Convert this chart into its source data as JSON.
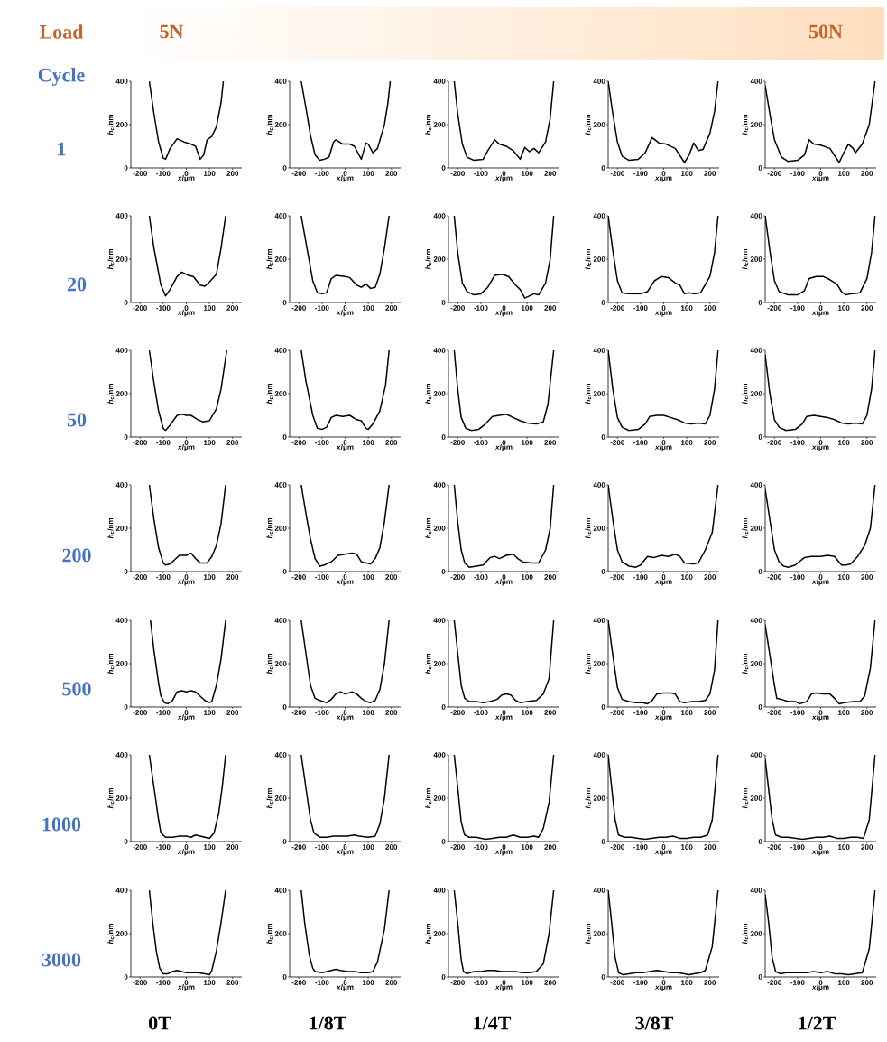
{
  "chart_data": [
    {
      "type": "line",
      "xlabel": "*x*/μm",
      "ylabel": "*h*$_{c}$/nm",
      "xlim": [
        -240,
        240
      ],
      "ylim": [
        0,
        400
      ],
      "xticks": [
        -200,
        -100,
        0,
        100,
        200
      ],
      "yticks": [
        0,
        200,
        400
      ],
      "series": [
        {
          "color": "#000000",
          "x": [
            -160,
            -140,
            -120,
            -100,
            -90,
            -70,
            -40,
            -10,
            20,
            40,
            60,
            75,
            90,
            110,
            130,
            150,
            160
          ],
          "values": [
            400,
            250,
            120,
            45,
            40,
            90,
            135,
            120,
            110,
            100,
            40,
            60,
            130,
            145,
            190,
            300,
            400
          ]
        }
      ]
    },
    {
      "type": "line",
      "xlabel": "*x*/μm",
      "ylabel": "*h*$_{c}$/nm",
      "xlim": [
        -240,
        240
      ],
      "ylim": [
        0,
        400
      ],
      "xticks": [
        -200,
        -100,
        0,
        100,
        200
      ],
      "yticks": [
        0,
        200,
        400
      ],
      "series": [
        {
          "color": "#000000",
          "x": [
            -190,
            -170,
            -150,
            -130,
            -110,
            -90,
            -70,
            -50,
            -40,
            -10,
            20,
            40,
            70,
            90,
            100,
            120,
            140,
            170,
            185,
            195
          ],
          "values": [
            400,
            280,
            150,
            60,
            35,
            40,
            50,
            120,
            130,
            110,
            110,
            100,
            40,
            115,
            110,
            70,
            90,
            200,
            300,
            400
          ]
        }
      ]
    },
    {
      "type": "line",
      "xlabel": "*x*/μm",
      "ylabel": "*h*$_{c}$/nm",
      "xlim": [
        -240,
        240
      ],
      "ylim": [
        0,
        400
      ],
      "xticks": [
        -200,
        -100,
        0,
        100,
        200
      ],
      "yticks": [
        0,
        200,
        400
      ],
      "series": [
        {
          "color": "#000000",
          "x": [
            -215,
            -200,
            -180,
            -160,
            -130,
            -90,
            -70,
            -40,
            -20,
            10,
            40,
            70,
            90,
            110,
            130,
            150,
            180,
            200,
            215
          ],
          "values": [
            400,
            250,
            110,
            50,
            35,
            40,
            80,
            130,
            110,
            100,
            80,
            40,
            95,
            75,
            90,
            70,
            120,
            230,
            400
          ]
        }
      ]
    },
    {
      "type": "line",
      "xlabel": "*x*/μm",
      "ylabel": "*h*$_{c}$/nm",
      "xlim": [
        -240,
        240
      ],
      "ylim": [
        0,
        400
      ],
      "xticks": [
        -200,
        -100,
        0,
        100,
        200
      ],
      "yticks": [
        0,
        200,
        400
      ],
      "series": [
        {
          "color": "#000000",
          "x": [
            -240,
            -220,
            -200,
            -180,
            -150,
            -110,
            -80,
            -50,
            -20,
            10,
            50,
            90,
            110,
            130,
            150,
            170,
            200,
            220,
            235
          ],
          "values": [
            400,
            250,
            120,
            55,
            35,
            40,
            70,
            140,
            115,
            110,
            90,
            25,
            60,
            115,
            80,
            85,
            160,
            260,
            400
          ]
        }
      ]
    },
    {
      "type": "line",
      "xlabel": "*x*/μm",
      "ylabel": "*h*$_{c}$/nm",
      "xlim": [
        -240,
        240
      ],
      "ylim": [
        0,
        400
      ],
      "xticks": [
        -200,
        -100,
        0,
        100,
        200
      ],
      "yticks": [
        0,
        200,
        400
      ],
      "series": [
        {
          "color": "#000000",
          "x": [
            -240,
            -220,
            -200,
            -170,
            -140,
            -100,
            -70,
            -50,
            -30,
            0,
            40,
            80,
            100,
            120,
            140,
            150,
            180,
            210,
            235
          ],
          "values": [
            380,
            250,
            130,
            50,
            30,
            35,
            60,
            130,
            110,
            105,
            90,
            25,
            70,
            110,
            90,
            70,
            110,
            200,
            400
          ]
        }
      ]
    },
    {
      "type": "line",
      "xlabel": "*x*/μm",
      "ylabel": "*h*$_{c}$/nm",
      "xlim": [
        -240,
        240
      ],
      "ylim": [
        0,
        400
      ],
      "xticks": [
        -200,
        -100,
        0,
        100,
        200
      ],
      "yticks": [
        0,
        200,
        400
      ],
      "series": [
        {
          "color": "#000000",
          "x": [
            -160,
            -140,
            -110,
            -90,
            -70,
            -40,
            -20,
            10,
            30,
            60,
            80,
            100,
            130,
            150,
            170
          ],
          "values": [
            400,
            250,
            80,
            30,
            60,
            120,
            140,
            125,
            120,
            80,
            75,
            95,
            130,
            250,
            400
          ]
        }
      ]
    },
    {
      "type": "line",
      "xlabel": "*x*/μm",
      "ylabel": "*h*$_{c}$/nm",
      "xlim": [
        -240,
        240
      ],
      "ylim": [
        0,
        400
      ],
      "xticks": [
        -200,
        -100,
        0,
        100,
        200
      ],
      "yticks": [
        0,
        200,
        400
      ],
      "series": [
        {
          "color": "#000000",
          "x": [
            -190,
            -170,
            -140,
            -120,
            -100,
            -80,
            -60,
            -40,
            0,
            20,
            50,
            70,
            90,
            110,
            130,
            150,
            170,
            190
          ],
          "values": [
            400,
            280,
            100,
            45,
            40,
            45,
            110,
            125,
            120,
            115,
            80,
            70,
            85,
            65,
            70,
            130,
            250,
            400
          ]
        }
      ]
    },
    {
      "type": "line",
      "xlabel": "*x*/μm",
      "ylabel": "*h*$_{c}$/nm",
      "xlim": [
        -240,
        240
      ],
      "ylim": [
        0,
        400
      ],
      "xticks": [
        -200,
        -100,
        0,
        100,
        200
      ],
      "yticks": [
        0,
        200,
        400
      ],
      "series": [
        {
          "color": "#000000",
          "x": [
            -215,
            -200,
            -180,
            -160,
            -130,
            -100,
            -70,
            -40,
            -10,
            20,
            50,
            70,
            90,
            110,
            130,
            150,
            180,
            200,
            215
          ],
          "values": [
            400,
            230,
            90,
            50,
            35,
            40,
            70,
            125,
            130,
            120,
            80,
            60,
            20,
            30,
            40,
            35,
            90,
            200,
            400
          ]
        }
      ]
    },
    {
      "type": "line",
      "xlabel": "*x*/μm",
      "ylabel": "*h*$_{c}$/nm",
      "xlim": [
        -240,
        240
      ],
      "ylim": [
        0,
        400
      ],
      "xticks": [
        -200,
        -100,
        0,
        100,
        200
      ],
      "yticks": [
        0,
        200,
        400
      ],
      "series": [
        {
          "color": "#000000",
          "x": [
            -240,
            -220,
            -200,
            -180,
            -150,
            -100,
            -70,
            -40,
            -10,
            20,
            50,
            70,
            90,
            110,
            130,
            160,
            200,
            220,
            235
          ],
          "values": [
            400,
            240,
            100,
            45,
            40,
            40,
            50,
            100,
            120,
            115,
            90,
            80,
            40,
            45,
            40,
            45,
            120,
            230,
            400
          ]
        }
      ]
    },
    {
      "type": "line",
      "xlabel": "*x*/μm",
      "ylabel": "*h*$_{c}$/nm",
      "xlim": [
        -240,
        240
      ],
      "ylim": [
        0,
        400
      ],
      "xticks": [
        -200,
        -100,
        0,
        100,
        200
      ],
      "yticks": [
        0,
        200,
        400
      ],
      "series": [
        {
          "color": "#000000",
          "x": [
            -240,
            -220,
            -200,
            -180,
            -140,
            -100,
            -70,
            -50,
            -20,
            10,
            40,
            70,
            90,
            110,
            130,
            170,
            200,
            220,
            235
          ],
          "values": [
            400,
            240,
            100,
            50,
            35,
            35,
            55,
            110,
            120,
            120,
            105,
            85,
            50,
            35,
            40,
            45,
            110,
            230,
            400
          ]
        }
      ]
    },
    {
      "type": "line",
      "xlabel": "*x*/μm",
      "ylabel": "*h*$_{c}$/nm",
      "xlim": [
        -240,
        240
      ],
      "ylim": [
        0,
        400
      ],
      "xticks": [
        -200,
        -100,
        0,
        100,
        200
      ],
      "yticks": [
        0,
        200,
        400
      ],
      "series": [
        {
          "color": "#000000",
          "x": [
            -160,
            -140,
            -120,
            -100,
            -90,
            -70,
            -40,
            -20,
            0,
            20,
            50,
            70,
            100,
            130,
            150,
            175
          ],
          "values": [
            400,
            250,
            120,
            40,
            30,
            55,
            100,
            105,
            100,
            100,
            80,
            70,
            75,
            130,
            220,
            400
          ]
        }
      ]
    },
    {
      "type": "line",
      "xlabel": "*x*/μm",
      "ylabel": "*h*$_{c}$/nm",
      "xlim": [
        -240,
        240
      ],
      "ylim": [
        0,
        400
      ],
      "xticks": [
        -200,
        -100,
        0,
        100,
        200
      ],
      "yticks": [
        0,
        200,
        400
      ],
      "series": [
        {
          "color": "#000000",
          "x": [
            -190,
            -170,
            -140,
            -120,
            -100,
            -80,
            -60,
            -40,
            -10,
            20,
            50,
            70,
            90,
            100,
            120,
            150,
            175,
            190
          ],
          "values": [
            400,
            260,
            100,
            40,
            35,
            45,
            90,
            100,
            95,
            100,
            80,
            75,
            40,
            35,
            60,
            120,
            240,
            400
          ]
        }
      ]
    },
    {
      "type": "line",
      "xlabel": "*x*/μm",
      "ylabel": "*h*$_{c}$/nm",
      "xlim": [
        -240,
        240
      ],
      "ylim": [
        0,
        400
      ],
      "xticks": [
        -200,
        -100,
        0,
        100,
        200
      ],
      "yticks": [
        0,
        200,
        400
      ],
      "series": [
        {
          "color": "#000000",
          "x": [
            -215,
            -200,
            -185,
            -165,
            -140,
            -110,
            -80,
            -50,
            -20,
            10,
            40,
            70,
            100,
            140,
            170,
            190,
            215
          ],
          "values": [
            400,
            220,
            90,
            40,
            30,
            35,
            60,
            95,
            100,
            105,
            90,
            75,
            65,
            60,
            70,
            150,
            400
          ]
        }
      ]
    },
    {
      "type": "line",
      "xlabel": "*x*/μm",
      "ylabel": "*h*$_{c}$/nm",
      "xlim": [
        -240,
        240
      ],
      "ylim": [
        0,
        400
      ],
      "xticks": [
        -200,
        -100,
        0,
        100,
        200
      ],
      "yticks": [
        0,
        200,
        400
      ],
      "series": [
        {
          "color": "#000000",
          "x": [
            -240,
            -220,
            -200,
            -180,
            -150,
            -110,
            -80,
            -60,
            -30,
            0,
            30,
            60,
            90,
            120,
            150,
            180,
            200,
            220,
            235
          ],
          "values": [
            400,
            220,
            90,
            45,
            30,
            35,
            60,
            95,
            100,
            100,
            90,
            80,
            65,
            60,
            65,
            60,
            100,
            220,
            400
          ]
        }
      ]
    },
    {
      "type": "line",
      "xlabel": "*x*/μm",
      "ylabel": "*h*$_{c}$/nm",
      "xlim": [
        -240,
        240
      ],
      "ylim": [
        0,
        400
      ],
      "xticks": [
        -200,
        -100,
        0,
        100,
        200
      ],
      "yticks": [
        0,
        200,
        400
      ],
      "series": [
        {
          "color": "#000000",
          "x": [
            -240,
            -220,
            -200,
            -180,
            -150,
            -110,
            -80,
            -60,
            -30,
            0,
            30,
            60,
            90,
            120,
            150,
            180,
            200,
            220,
            235
          ],
          "values": [
            380,
            200,
            80,
            45,
            30,
            35,
            60,
            95,
            100,
            95,
            90,
            80,
            65,
            60,
            65,
            60,
            100,
            220,
            400
          ]
        }
      ]
    },
    {
      "type": "line",
      "xlabel": "*x*/μm",
      "ylabel": "*h*$_{c}$/nm",
      "xlim": [
        -240,
        240
      ],
      "ylim": [
        0,
        400
      ],
      "xticks": [
        -200,
        -100,
        0,
        100,
        200
      ],
      "yticks": [
        0,
        200,
        400
      ],
      "series": [
        {
          "color": "#000000",
          "x": [
            -160,
            -140,
            -120,
            -100,
            -90,
            -70,
            -50,
            -30,
            0,
            20,
            40,
            60,
            90,
            110,
            130,
            150,
            170
          ],
          "values": [
            400,
            240,
            110,
            40,
            30,
            35,
            55,
            75,
            75,
            85,
            60,
            40,
            40,
            70,
            120,
            220,
            400
          ]
        }
      ]
    },
    {
      "type": "line",
      "xlabel": "*x*/μm",
      "ylabel": "*h*$_{c}$/nm",
      "xlim": [
        -240,
        240
      ],
      "ylim": [
        0,
        400
      ],
      "xticks": [
        -200,
        -100,
        0,
        100,
        200
      ],
      "yticks": [
        0,
        200,
        400
      ],
      "series": [
        {
          "color": "#000000",
          "x": [
            -190,
            -170,
            -150,
            -130,
            -110,
            -90,
            -60,
            -30,
            0,
            30,
            50,
            70,
            90,
            110,
            130,
            150,
            170,
            190
          ],
          "values": [
            400,
            270,
            150,
            60,
            25,
            30,
            45,
            75,
            80,
            85,
            80,
            45,
            40,
            35,
            60,
            110,
            230,
            400
          ]
        }
      ]
    },
    {
      "type": "line",
      "xlabel": "*x*/μm",
      "ylabel": "*h*$_{c}$/nm",
      "xlim": [
        -240,
        240
      ],
      "ylim": [
        0,
        400
      ],
      "xticks": [
        -200,
        -100,
        0,
        100,
        200
      ],
      "yticks": [
        0,
        200,
        400
      ],
      "series": [
        {
          "color": "#000000",
          "x": [
            -215,
            -200,
            -185,
            -170,
            -150,
            -120,
            -90,
            -60,
            -40,
            -20,
            10,
            40,
            60,
            80,
            120,
            150,
            180,
            200,
            215
          ],
          "values": [
            400,
            230,
            100,
            40,
            20,
            25,
            30,
            65,
            70,
            60,
            75,
            80,
            60,
            45,
            40,
            40,
            100,
            200,
            400
          ]
        }
      ]
    },
    {
      "type": "line",
      "xlabel": "*x*/μm",
      "ylabel": "*h*$_{c}$/nm",
      "xlim": [
        -240,
        240
      ],
      "ylim": [
        0,
        400
      ],
      "xticks": [
        -200,
        -100,
        0,
        100,
        200
      ],
      "yticks": [
        0,
        200,
        400
      ],
      "series": [
        {
          "color": "#000000",
          "x": [
            -240,
            -220,
            -200,
            -180,
            -150,
            -120,
            -100,
            -70,
            -40,
            -10,
            20,
            50,
            70,
            90,
            130,
            150,
            180,
            210,
            235
          ],
          "values": [
            400,
            240,
            100,
            45,
            25,
            20,
            30,
            70,
            65,
            75,
            70,
            80,
            70,
            40,
            35,
            40,
            100,
            180,
            400
          ]
        }
      ]
    },
    {
      "type": "line",
      "xlabel": "*x*/μm",
      "ylabel": "*h*$_{c}$/nm",
      "xlim": [
        -240,
        240
      ],
      "ylim": [
        0,
        400
      ],
      "xticks": [
        -200,
        -100,
        0,
        100,
        200
      ],
      "yticks": [
        0,
        200,
        400
      ],
      "series": [
        {
          "color": "#000000",
          "x": [
            -240,
            -220,
            -200,
            -180,
            -160,
            -140,
            -110,
            -70,
            -40,
            0,
            30,
            60,
            90,
            110,
            130,
            160,
            190,
            215,
            235
          ],
          "values": [
            380,
            240,
            100,
            45,
            25,
            20,
            30,
            65,
            70,
            70,
            75,
            70,
            30,
            30,
            35,
            70,
            120,
            200,
            400
          ]
        }
      ]
    },
    {
      "type": "line",
      "xlabel": "*x*/μm",
      "ylabel": "*h*$_{c}$/nm",
      "xlim": [
        -240,
        240
      ],
      "ylim": [
        0,
        400
      ],
      "xticks": [
        -200,
        -100,
        0,
        100,
        200
      ],
      "yticks": [
        0,
        200,
        400
      ],
      "series": [
        {
          "color": "#000000",
          "x": [
            -155,
            -140,
            -120,
            -110,
            -95,
            -80,
            -60,
            -40,
            -20,
            0,
            20,
            40,
            60,
            80,
            100,
            110,
            130,
            150,
            170
          ],
          "values": [
            400,
            260,
            110,
            50,
            20,
            15,
            30,
            70,
            75,
            70,
            75,
            70,
            50,
            30,
            20,
            25,
            100,
            220,
            400
          ]
        }
      ]
    },
    {
      "type": "line",
      "xlabel": "*x*/μm",
      "ylabel": "*h*$_{c}$/nm",
      "xlim": [
        -240,
        240
      ],
      "ylim": [
        0,
        400
      ],
      "xticks": [
        -200,
        -100,
        0,
        100,
        200
      ],
      "yticks": [
        0,
        200,
        400
      ],
      "series": [
        {
          "color": "#000000",
          "x": [
            -190,
            -170,
            -150,
            -130,
            -110,
            -80,
            -60,
            -40,
            -20,
            0,
            30,
            50,
            70,
            90,
            110,
            130,
            150,
            170,
            190
          ],
          "values": [
            400,
            250,
            100,
            40,
            30,
            20,
            35,
            60,
            70,
            60,
            70,
            60,
            40,
            25,
            20,
            30,
            80,
            200,
            400
          ]
        }
      ]
    },
    {
      "type": "line",
      "xlabel": "*x*/μm",
      "ylabel": "*h*$_{c}$/nm",
      "xlim": [
        -240,
        240
      ],
      "ylim": [
        0,
        400
      ],
      "xticks": [
        -200,
        -100,
        0,
        100,
        200
      ],
      "yticks": [
        0,
        200,
        400
      ],
      "series": [
        {
          "color": "#000000",
          "x": [
            -215,
            -200,
            -185,
            -170,
            -150,
            -120,
            -90,
            -60,
            -30,
            -10,
            10,
            30,
            50,
            70,
            100,
            140,
            170,
            195,
            215
          ],
          "values": [
            400,
            250,
            100,
            40,
            25,
            25,
            20,
            25,
            35,
            55,
            60,
            55,
            30,
            20,
            25,
            30,
            60,
            130,
            400
          ]
        }
      ]
    },
    {
      "type": "line",
      "xlabel": "*x*/μm",
      "ylabel": "*h*$_{c}$/nm",
      "xlim": [
        -240,
        240
      ],
      "ylim": [
        0,
        400
      ],
      "xticks": [
        -200,
        -100,
        0,
        100,
        200
      ],
      "yticks": [
        0,
        200,
        400
      ],
      "series": [
        {
          "color": "#000000",
          "x": [
            -240,
            -220,
            -200,
            -180,
            -150,
            -120,
            -90,
            -70,
            -50,
            -30,
            0,
            30,
            50,
            70,
            90,
            120,
            150,
            180,
            200,
            220,
            235
          ],
          "values": [
            400,
            240,
            90,
            35,
            25,
            20,
            20,
            15,
            30,
            60,
            65,
            65,
            60,
            25,
            20,
            25,
            25,
            30,
            60,
            170,
            400
          ]
        }
      ]
    },
    {
      "type": "line",
      "xlabel": "*x*/μm",
      "ylabel": "*h*$_{c}$/nm",
      "xlim": [
        -240,
        240
      ],
      "ylim": [
        0,
        400
      ],
      "xticks": [
        -200,
        -100,
        0,
        100,
        200
      ],
      "yticks": [
        0,
        200,
        400
      ],
      "series": [
        {
          "color": "#000000",
          "x": [
            -240,
            -220,
            -200,
            -190,
            -170,
            -140,
            -110,
            -90,
            -60,
            -40,
            -20,
            10,
            40,
            60,
            80,
            100,
            140,
            170,
            190,
            215,
            235
          ],
          "values": [
            380,
            240,
            100,
            40,
            35,
            25,
            25,
            15,
            25,
            60,
            65,
            60,
            60,
            40,
            15,
            20,
            25,
            25,
            50,
            180,
            400
          ]
        }
      ]
    },
    {
      "type": "line",
      "xlabel": "*x*/μm",
      "ylabel": "*h*$_{c}$/nm",
      "xlim": [
        -240,
        240
      ],
      "ylim": [
        0,
        400
      ],
      "xticks": [
        -200,
        -100,
        0,
        100,
        200
      ],
      "yticks": [
        0,
        200,
        400
      ],
      "series": [
        {
          "color": "#000000",
          "x": [
            -160,
            -140,
            -120,
            -110,
            -90,
            -60,
            -30,
            0,
            20,
            40,
            60,
            80,
            100,
            120,
            140,
            155,
            170
          ],
          "values": [
            400,
            250,
            100,
            40,
            20,
            20,
            25,
            25,
            20,
            30,
            25,
            20,
            15,
            40,
            130,
            250,
            400
          ]
        }
      ]
    },
    {
      "type": "line",
      "xlabel": "*x*/μm",
      "ylabel": "*h*$_{c}$/nm",
      "xlim": [
        -240,
        240
      ],
      "ylim": [
        0,
        400
      ],
      "xticks": [
        -200,
        -100,
        0,
        100,
        200
      ],
      "yticks": [
        0,
        200,
        400
      ],
      "series": [
        {
          "color": "#000000",
          "x": [
            -190,
            -170,
            -150,
            -135,
            -110,
            -80,
            -50,
            -20,
            10,
            40,
            60,
            100,
            130,
            150,
            170,
            190
          ],
          "values": [
            400,
            250,
            100,
            40,
            20,
            20,
            25,
            25,
            25,
            30,
            25,
            20,
            25,
            80,
            200,
            400
          ]
        }
      ]
    },
    {
      "type": "line",
      "xlabel": "*x*/μm",
      "ylabel": "*h*$_{c}$/nm",
      "xlim": [
        -240,
        240
      ],
      "ylim": [
        0,
        400
      ],
      "xticks": [
        -200,
        -100,
        0,
        100,
        200
      ],
      "yticks": [
        0,
        200,
        400
      ],
      "series": [
        {
          "color": "#000000",
          "x": [
            -215,
            -200,
            -185,
            -170,
            -150,
            -120,
            -100,
            -80,
            -50,
            -20,
            10,
            40,
            70,
            100,
            130,
            150,
            170,
            195,
            215
          ],
          "values": [
            400,
            250,
            90,
            30,
            20,
            20,
            15,
            10,
            15,
            20,
            20,
            30,
            20,
            20,
            25,
            20,
            60,
            180,
            400
          ]
        }
      ]
    },
    {
      "type": "line",
      "xlabel": "*x*/μm",
      "ylabel": "*h*$_{c}$/nm",
      "xlim": [
        -240,
        240
      ],
      "ylim": [
        0,
        400
      ],
      "xticks": [
        -200,
        -100,
        0,
        100,
        200
      ],
      "yticks": [
        0,
        200,
        400
      ],
      "series": [
        {
          "color": "#000000",
          "x": [
            -240,
            -225,
            -210,
            -195,
            -170,
            -140,
            -110,
            -80,
            -50,
            -20,
            10,
            40,
            70,
            100,
            130,
            160,
            190,
            210,
            235
          ],
          "values": [
            400,
            250,
            100,
            30,
            20,
            20,
            15,
            10,
            15,
            20,
            20,
            25,
            15,
            15,
            20,
            20,
            30,
            100,
            400
          ]
        }
      ]
    },
    {
      "type": "line",
      "xlabel": "*x*/μm",
      "ylabel": "*h*$_{c}$/nm",
      "xlim": [
        -240,
        240
      ],
      "ylim": [
        0,
        400
      ],
      "xticks": [
        -200,
        -100,
        0,
        100,
        200
      ],
      "yticks": [
        0,
        200,
        400
      ],
      "series": [
        {
          "color": "#000000",
          "x": [
            -240,
            -225,
            -210,
            -195,
            -170,
            -140,
            -110,
            -80,
            -50,
            -20,
            10,
            40,
            70,
            100,
            130,
            160,
            185,
            210,
            235
          ],
          "values": [
            380,
            240,
            100,
            30,
            20,
            20,
            15,
            10,
            15,
            20,
            20,
            25,
            15,
            15,
            20,
            20,
            15,
            100,
            400
          ]
        }
      ]
    },
    {
      "type": "line",
      "xlabel": "*x*/μm",
      "ylabel": "*h*$_{c}$/nm",
      "xlim": [
        -240,
        240
      ],
      "ylim": [
        0,
        400
      ],
      "xticks": [
        -200,
        -100,
        0,
        100,
        200
      ],
      "yticks": [
        0,
        200,
        400
      ],
      "series": [
        {
          "color": "#000000",
          "x": [
            -160,
            -145,
            -130,
            -115,
            -100,
            -80,
            -60,
            -40,
            -20,
            0,
            20,
            50,
            80,
            100,
            110,
            130,
            150,
            170
          ],
          "values": [
            400,
            250,
            120,
            40,
            15,
            15,
            25,
            30,
            25,
            20,
            20,
            20,
            15,
            10,
            30,
            120,
            250,
            400
          ]
        }
      ]
    },
    {
      "type": "line",
      "xlabel": "*x*/μm",
      "ylabel": "*h*$_{c}$/nm",
      "xlim": [
        -240,
        240
      ],
      "ylim": [
        0,
        400
      ],
      "xticks": [
        -200,
        -100,
        0,
        100,
        200
      ],
      "yticks": [
        0,
        200,
        400
      ],
      "series": [
        {
          "color": "#000000",
          "x": [
            -190,
            -175,
            -155,
            -140,
            -130,
            -100,
            -80,
            -60,
            -40,
            -20,
            10,
            40,
            70,
            100,
            120,
            140,
            170,
            190
          ],
          "values": [
            400,
            250,
            100,
            40,
            25,
            20,
            25,
            30,
            35,
            30,
            25,
            25,
            20,
            20,
            25,
            70,
            220,
            400
          ]
        }
      ]
    },
    {
      "type": "line",
      "xlabel": "*x*/μm",
      "ylabel": "*h*$_{c}$/nm",
      "xlim": [
        -240,
        240
      ],
      "ylim": [
        0,
        400
      ],
      "xticks": [
        -200,
        -100,
        0,
        100,
        200
      ],
      "yticks": [
        0,
        200,
        400
      ],
      "series": [
        {
          "color": "#000000",
          "x": [
            -215,
            -200,
            -185,
            -175,
            -160,
            -130,
            -100,
            -70,
            -40,
            -10,
            20,
            50,
            80,
            110,
            140,
            170,
            195,
            215
          ],
          "values": [
            400,
            250,
            80,
            25,
            15,
            25,
            25,
            30,
            30,
            25,
            25,
            25,
            20,
            20,
            25,
            60,
            200,
            400
          ]
        }
      ]
    },
    {
      "type": "line",
      "xlabel": "*x*/μm",
      "ylabel": "*h*$_{c}$/nm",
      "xlim": [
        -240,
        240
      ],
      "ylim": [
        0,
        400
      ],
      "xticks": [
        -200,
        -100,
        0,
        100,
        200
      ],
      "yticks": [
        0,
        200,
        400
      ],
      "series": [
        {
          "color": "#000000",
          "x": [
            -240,
            -225,
            -210,
            -195,
            -175,
            -150,
            -120,
            -90,
            -60,
            -30,
            0,
            30,
            60,
            90,
            110,
            130,
            160,
            180,
            210,
            235
          ],
          "values": [
            400,
            250,
            90,
            20,
            10,
            15,
            20,
            20,
            25,
            30,
            25,
            20,
            20,
            15,
            10,
            15,
            20,
            30,
            140,
            400
          ]
        }
      ]
    },
    {
      "type": "line",
      "xlabel": "*x*/μm",
      "ylabel": "*h*$_{c}$/nm",
      "xlim": [
        -240,
        240
      ],
      "ylim": [
        0,
        400
      ],
      "xticks": [
        -200,
        -100,
        0,
        100,
        200
      ],
      "yticks": [
        0,
        200,
        400
      ],
      "series": [
        {
          "color": "#000000",
          "x": [
            -240,
            -225,
            -210,
            -195,
            -175,
            -150,
            -120,
            -90,
            -60,
            -30,
            0,
            30,
            60,
            90,
            120,
            150,
            180,
            210,
            235
          ],
          "values": [
            380,
            250,
            90,
            25,
            15,
            20,
            20,
            20,
            20,
            25,
            20,
            25,
            15,
            15,
            10,
            15,
            20,
            130,
            400
          ]
        }
      ]
    },
    {
      "type": "other",
      "annotations": [
        "Load",
        "5N",
        "50N",
        "Cycle",
        "1",
        "20",
        "50",
        "200",
        "500",
        "1000",
        "3000",
        "0T",
        "1/8T",
        "1/4T",
        "3/8T",
        "1/2T"
      ]
    }
  ]
}
